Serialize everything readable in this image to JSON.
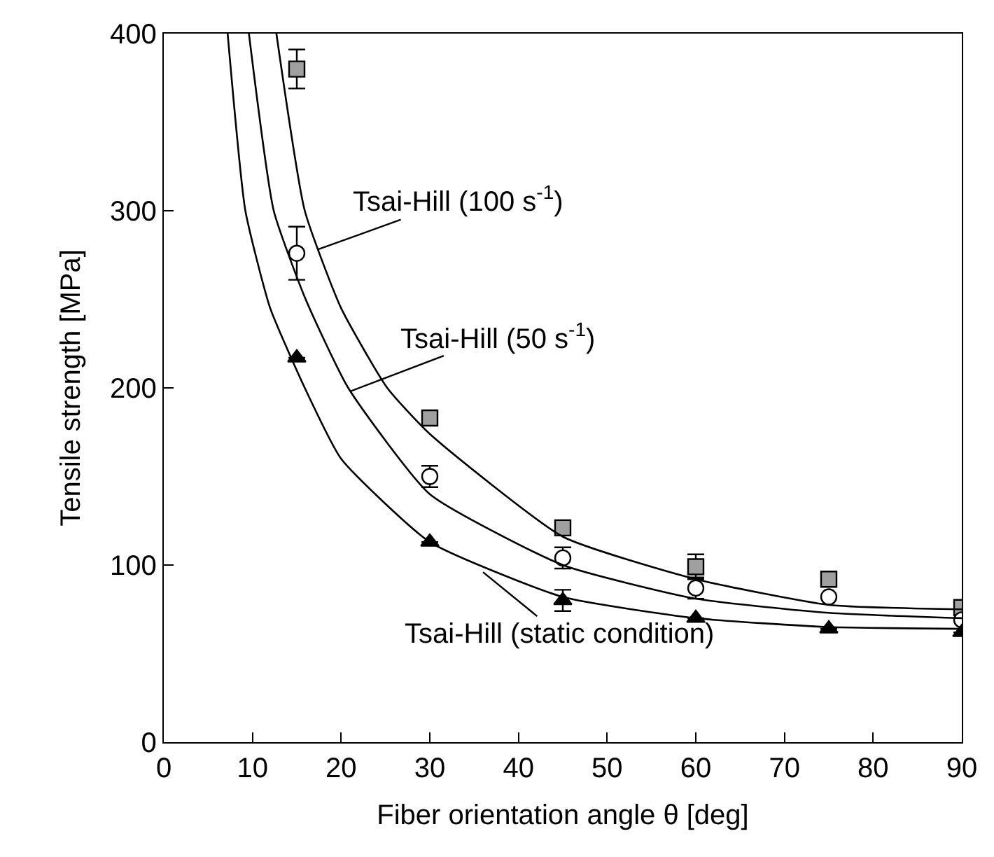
{
  "chart_data": {
    "type": "scatter",
    "xlabel": "Fiber orientation angle θ [deg]",
    "ylabel": "Tensile strength [MPa]",
    "xlim": [
      0,
      90
    ],
    "xticks": [
      0,
      10,
      20,
      30,
      40,
      50,
      60,
      70,
      80,
      90
    ],
    "ylim": [
      0,
      400
    ],
    "yticks": [
      0,
      100,
      200,
      300,
      400
    ],
    "series": [
      {
        "marker": "square",
        "color": "#a0a0a0",
        "x": [
          15,
          30,
          45,
          60,
          75,
          90
        ],
        "values": [
          380,
          183,
          121,
          99,
          92,
          76
        ],
        "errors": [
          11,
          null,
          null,
          7,
          null,
          null
        ]
      },
      {
        "marker": "circle",
        "color": "#ffffff",
        "x": [
          15,
          30,
          45,
          60,
          75,
          90
        ],
        "values": [
          276,
          150,
          104,
          87,
          82,
          69
        ],
        "errors": [
          15,
          6,
          6,
          6,
          null,
          null
        ]
      },
      {
        "marker": "triangle",
        "color": "#000000",
        "x": [
          15,
          30,
          45,
          60,
          75,
          90
        ],
        "values": [
          217,
          113,
          80,
          70,
          64,
          62
        ],
        "errors": [
          null,
          null,
          6,
          null,
          null,
          null
        ]
      },
      {
        "type": "line",
        "marker": "none",
        "color": "#000000",
        "x": [
          12.7,
          15.9,
          20,
          25.2,
          30,
          45,
          60,
          75,
          90
        ],
        "values": [
          400,
          300,
          245,
          200,
          174,
          116,
          92,
          77.5,
          75
        ]
      },
      {
        "type": "line",
        "marker": "none",
        "color": "#000000",
        "x": [
          9.6,
          12.4,
          16,
          20.8,
          30,
          45,
          60,
          75,
          90
        ],
        "values": [
          400,
          300,
          250,
          200,
          140,
          100,
          81,
          73,
          70
        ]
      },
      {
        "type": "line",
        "marker": "none",
        "color": "#000000",
        "x": [
          7.2,
          9.2,
          12,
          15.9,
          20,
          30,
          45,
          60,
          75,
          90
        ],
        "values": [
          400,
          300,
          245,
          200,
          160,
          113,
          82,
          70,
          65,
          64
        ]
      }
    ],
    "annotations": [
      {
        "text": "Tsai-Hill (100 s$^{-1}$)",
        "x": 17.3,
        "y": 278
      },
      {
        "text": "Tsai-Hill (50 s$^{-1}$)",
        "x": 21,
        "y": 198
      },
      {
        "text": "Tsai-Hill (static condition)",
        "x": 36,
        "y": 96
      }
    ]
  }
}
